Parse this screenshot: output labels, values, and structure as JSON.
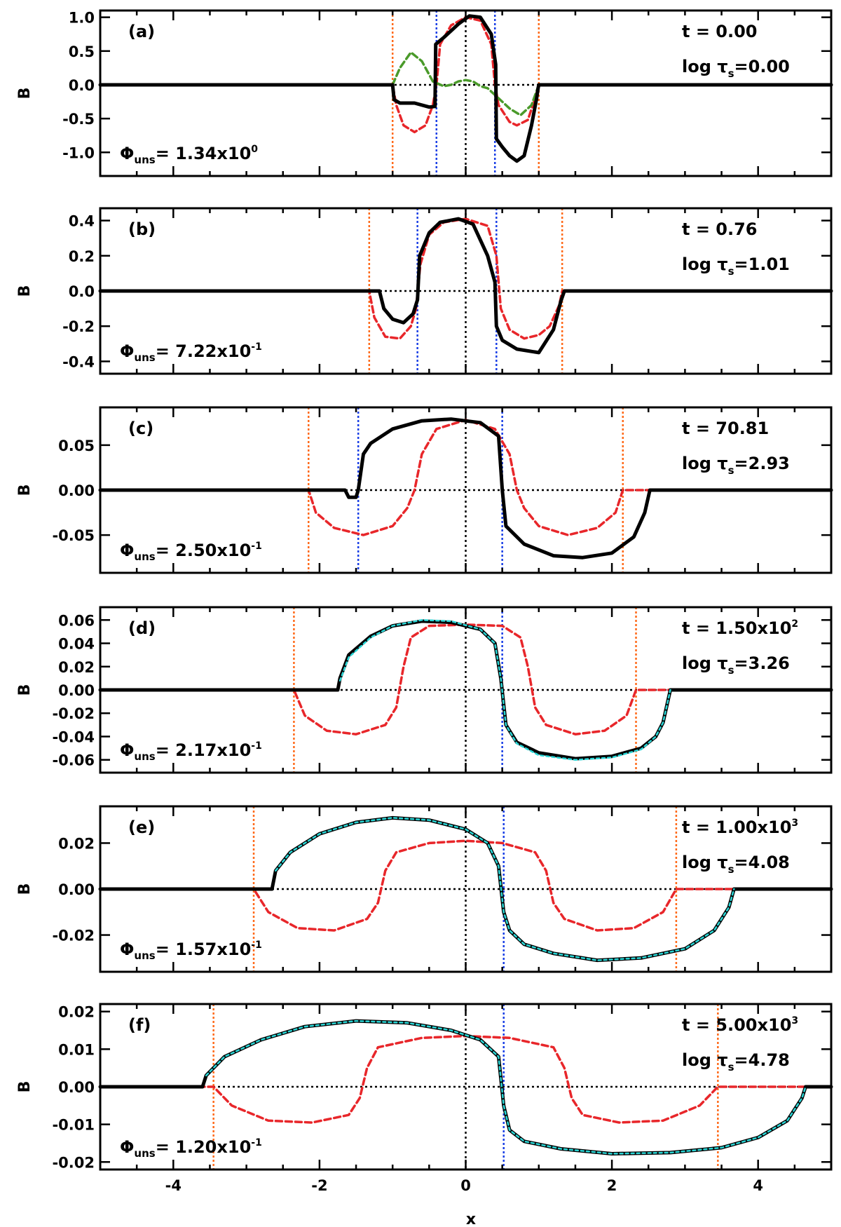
{
  "figure": {
    "xlabel": "x",
    "ylabel": "B",
    "xlim": [
      -5,
      5
    ],
    "xticks": [
      -4,
      -2,
      0,
      2,
      4
    ],
    "xtick_labels": [
      "-4",
      "-2",
      "0",
      "2",
      "4"
    ]
  },
  "colors": {
    "B": "#000000",
    "reference": "#e8262a",
    "initial_green": "#4a9a2a",
    "fit": "#2ad6d6",
    "outer_boundary": "#ff6a1a",
    "inner_boundary": "#1a3fe6",
    "zero_line": "#000000"
  },
  "chart_data": [
    {
      "type": "line",
      "panel_label": "(a)",
      "time_label": "t  =  0.00",
      "tau_label": "log τ",
      "tau_subscript": "s",
      "tau_value": "=0.00",
      "phi_symbol": "Φ",
      "phi_subscript": "uns",
      "phi_value": "=  1.34x10",
      "phi_exponent": "0",
      "ylim": [
        -1.35,
        1.1
      ],
      "yticks": [
        -1.0,
        -0.5,
        0.0,
        0.5,
        1.0
      ],
      "ytick_labels": [
        "-1.0",
        "-0.5",
        "0.0",
        "0.5",
        "1.0"
      ],
      "outer_lines": [
        -1.0,
        1.0
      ],
      "inner_lines": [
        -0.4,
        0.4
      ],
      "series": [
        {
          "style": "solid-black",
          "x": [
            -5,
            -1.0,
            -0.98,
            -0.9,
            -0.7,
            -0.5,
            -0.42,
            -0.41,
            -0.3,
            -0.1,
            0.05,
            0.2,
            0.35,
            0.41,
            0.42,
            0.5,
            0.6,
            0.7,
            0.8,
            0.9,
            0.97,
            0.99,
            1.0,
            5
          ],
          "y": [
            0,
            0,
            -0.22,
            -0.27,
            -0.27,
            -0.33,
            -0.32,
            0.6,
            0.7,
            0.9,
            1.02,
            1.0,
            0.75,
            0.3,
            -0.8,
            -0.92,
            -1.05,
            -1.13,
            -1.05,
            -0.6,
            -0.2,
            -0.05,
            0,
            0
          ]
        },
        {
          "style": "dash-red",
          "x": [
            -5,
            -1.0,
            -0.95,
            -0.85,
            -0.7,
            -0.55,
            -0.45,
            -0.4,
            -0.35,
            -0.2,
            0,
            0.2,
            0.35,
            0.4,
            0.45,
            0.6,
            0.7,
            0.85,
            0.95,
            1.0,
            5
          ],
          "y": [
            0,
            0,
            -0.3,
            -0.6,
            -0.7,
            -0.6,
            -0.3,
            0,
            0.6,
            0.88,
            1.0,
            0.95,
            0.6,
            0,
            -0.3,
            -0.55,
            -0.6,
            -0.52,
            -0.2,
            0,
            0
          ]
        },
        {
          "style": "dash-green",
          "x": [
            -1.0,
            -0.9,
            -0.75,
            -0.6,
            -0.45,
            -0.3,
            -0.2,
            -0.1,
            0,
            0.1,
            0.2,
            0.3,
            0.45,
            0.6,
            0.75,
            0.9,
            1.0
          ],
          "y": [
            0,
            0.25,
            0.48,
            0.35,
            0.05,
            -0.02,
            0,
            0.05,
            0.07,
            0.05,
            -0.02,
            -0.05,
            -0.2,
            -0.35,
            -0.45,
            -0.3,
            0
          ]
        }
      ]
    },
    {
      "type": "line",
      "panel_label": "(b)",
      "time_label": "t  =  0.76",
      "tau_label": "log τ",
      "tau_subscript": "s",
      "tau_value": "=1.01",
      "phi_symbol": "Φ",
      "phi_subscript": "uns",
      "phi_value": "=  7.22x10",
      "phi_exponent": "-1",
      "ylim": [
        -0.47,
        0.47
      ],
      "yticks": [
        -0.4,
        -0.2,
        0.0,
        0.2,
        0.4
      ],
      "ytick_labels": [
        "-0.4",
        "-0.2",
        "0.0",
        "0.2",
        "0.4"
      ],
      "outer_lines": [
        -1.32,
        1.32
      ],
      "inner_lines": [
        -0.66,
        0.42
      ],
      "series": [
        {
          "style": "solid-black",
          "x": [
            -5,
            -1.18,
            -1.12,
            -1.0,
            -0.85,
            -0.72,
            -0.66,
            -0.63,
            -0.5,
            -0.35,
            -0.1,
            0.1,
            0.3,
            0.4,
            0.42,
            0.5,
            0.7,
            1.0,
            1.2,
            1.3,
            1.35,
            5
          ],
          "y": [
            0,
            0,
            -0.1,
            -0.16,
            -0.18,
            -0.13,
            -0.05,
            0.2,
            0.33,
            0.39,
            0.41,
            0.38,
            0.2,
            0.05,
            -0.2,
            -0.28,
            -0.33,
            -0.35,
            -0.22,
            -0.06,
            0,
            0
          ]
        },
        {
          "style": "dash-red",
          "x": [
            -5,
            -1.32,
            -1.25,
            -1.1,
            -0.9,
            -0.75,
            -0.68,
            -0.62,
            -0.5,
            -0.3,
            0,
            0.3,
            0.42,
            0.48,
            0.6,
            0.8,
            1.0,
            1.15,
            1.28,
            1.32,
            5
          ],
          "y": [
            0,
            0,
            -0.15,
            -0.26,
            -0.27,
            -0.2,
            -0.1,
            0.15,
            0.32,
            0.39,
            0.41,
            0.37,
            0.2,
            -0.1,
            -0.22,
            -0.27,
            -0.25,
            -0.2,
            -0.08,
            0,
            0
          ]
        }
      ]
    },
    {
      "type": "line",
      "panel_label": "(c)",
      "time_label": "t  =  70.81",
      "tau_label": "log τ",
      "tau_subscript": "s",
      "tau_value": "=2.93",
      "phi_symbol": "Φ",
      "phi_subscript": "uns",
      "phi_value": "=  2.50x10",
      "phi_exponent": "-1",
      "ylim": [
        -0.092,
        0.092
      ],
      "yticks": [
        -0.05,
        0.0,
        0.05
      ],
      "ytick_labels": [
        "-0.05",
        "0.00",
        "0.05"
      ],
      "outer_lines": [
        -2.15,
        2.15
      ],
      "inner_lines": [
        -1.47,
        0.5
      ],
      "series": [
        {
          "style": "solid-black",
          "x": [
            -5,
            -1.65,
            -1.6,
            -1.5,
            -1.47,
            -1.4,
            -1.3,
            -1.0,
            -0.6,
            -0.2,
            0.2,
            0.45,
            0.5,
            0.55,
            0.8,
            1.2,
            1.6,
            2.0,
            2.3,
            2.45,
            2.52,
            5
          ],
          "y": [
            0,
            0,
            -0.008,
            -0.008,
            0,
            0.04,
            0.052,
            0.068,
            0.077,
            0.079,
            0.075,
            0.06,
            0,
            -0.04,
            -0.06,
            -0.073,
            -0.075,
            -0.07,
            -0.052,
            -0.025,
            0,
            0
          ]
        },
        {
          "style": "dash-red",
          "x": [
            -5,
            -2.15,
            -2.05,
            -1.8,
            -1.4,
            -1.0,
            -0.8,
            -0.7,
            -0.6,
            -0.4,
            0,
            0.4,
            0.6,
            0.7,
            0.8,
            1.0,
            1.4,
            1.8,
            2.05,
            2.15,
            5
          ],
          "y": [
            0,
            0,
            -0.025,
            -0.042,
            -0.05,
            -0.04,
            -0.02,
            0,
            0.04,
            0.068,
            0.078,
            0.068,
            0.04,
            0,
            -0.02,
            -0.04,
            -0.05,
            -0.042,
            -0.025,
            0,
            0
          ]
        }
      ]
    },
    {
      "type": "line",
      "panel_label": "(d)",
      "time_label": "t  =  1.50x10",
      "time_exponent": "2",
      "tau_label": "log τ",
      "tau_subscript": "s",
      "tau_value": "=3.26",
      "phi_symbol": "Φ",
      "phi_subscript": "uns",
      "phi_value": "=  2.17x10",
      "phi_exponent": "-1",
      "ylim": [
        -0.071,
        0.071
      ],
      "yticks": [
        -0.06,
        -0.04,
        -0.02,
        0.0,
        0.02,
        0.04,
        0.06
      ],
      "ytick_labels": [
        "-0.06",
        "-0.04",
        "-0.02",
        "0.00",
        "0.02",
        "0.04",
        "0.06"
      ],
      "outer_lines": [
        -2.35,
        2.33
      ],
      "inner_lines": [
        0.5
      ],
      "series": [
        {
          "style": "solid-black",
          "x": [
            -5,
            -1.75,
            -1.72,
            -1.6,
            -1.3,
            -1.0,
            -0.6,
            -0.2,
            0.2,
            0.4,
            0.48,
            0.55,
            0.7,
            1.0,
            1.5,
            2.0,
            2.4,
            2.6,
            2.7,
            2.8,
            5
          ],
          "y": [
            0,
            0,
            0.01,
            0.03,
            0.046,
            0.055,
            0.059,
            0.058,
            0.052,
            0.04,
            0.01,
            -0.03,
            -0.045,
            -0.054,
            -0.059,
            -0.057,
            -0.05,
            -0.04,
            -0.028,
            0,
            0
          ]
        },
        {
          "style": "dash-cyan",
          "x": [
            -1.72,
            -1.6,
            -1.3,
            -1.0,
            -0.6,
            -0.2,
            0.2,
            0.4,
            0.48,
            0.55,
            0.7,
            1.0,
            1.5,
            2.0,
            2.4,
            2.6,
            2.7,
            2.8
          ],
          "y": [
            0.008,
            0.028,
            0.045,
            0.055,
            0.06,
            0.059,
            0.052,
            0.04,
            0.01,
            -0.03,
            -0.046,
            -0.056,
            -0.06,
            -0.058,
            -0.051,
            -0.04,
            -0.028,
            0
          ]
        },
        {
          "style": "dash-red",
          "x": [
            -5,
            -2.35,
            -2.2,
            -1.9,
            -1.5,
            -1.1,
            -0.95,
            -0.85,
            -0.75,
            -0.5,
            0,
            0.5,
            0.75,
            0.85,
            0.95,
            1.1,
            1.5,
            1.9,
            2.2,
            2.33,
            5
          ],
          "y": [
            0,
            0,
            -0.022,
            -0.035,
            -0.038,
            -0.03,
            -0.015,
            0.02,
            0.045,
            0.055,
            0.056,
            0.055,
            0.045,
            0.02,
            -0.015,
            -0.03,
            -0.038,
            -0.035,
            -0.022,
            0,
            0
          ]
        }
      ]
    },
    {
      "type": "line",
      "panel_label": "(e)",
      "time_label": "t  =  1.00x10",
      "time_exponent": "3",
      "tau_label": "log τ",
      "tau_subscript": "s",
      "tau_value": "=4.08",
      "phi_symbol": "Φ",
      "phi_subscript": "uns",
      "phi_value": "=  1.57x10",
      "phi_exponent": "-1",
      "ylim": [
        -0.036,
        0.036
      ],
      "yticks": [
        -0.02,
        0.0,
        0.02
      ],
      "ytick_labels": [
        "-0.02",
        "0.00",
        "0.02"
      ],
      "outer_lines": [
        -2.9,
        2.88
      ],
      "inner_lines": [
        0.52
      ],
      "series": [
        {
          "style": "solid-black",
          "x": [
            -5,
            -2.65,
            -2.6,
            -2.4,
            -2.0,
            -1.5,
            -1.0,
            -0.5,
            0,
            0.3,
            0.45,
            0.52,
            0.6,
            0.8,
            1.2,
            1.8,
            2.4,
            3.0,
            3.4,
            3.6,
            3.67,
            5
          ],
          "y": [
            0,
            0,
            0.008,
            0.016,
            0.024,
            0.029,
            0.031,
            0.03,
            0.026,
            0.02,
            0.01,
            -0.01,
            -0.018,
            -0.024,
            -0.028,
            -0.031,
            -0.03,
            -0.026,
            -0.018,
            -0.008,
            0,
            0
          ]
        },
        {
          "style": "dash-cyan",
          "x": [
            -2.6,
            -2.4,
            -2.0,
            -1.5,
            -1.0,
            -0.5,
            0,
            0.3,
            0.45,
            0.52,
            0.6,
            0.8,
            1.2,
            1.8,
            2.4,
            3.0,
            3.4,
            3.6,
            3.67
          ],
          "y": [
            0.008,
            0.016,
            0.024,
            0.029,
            0.031,
            0.03,
            0.026,
            0.02,
            0.01,
            -0.01,
            -0.018,
            -0.024,
            -0.028,
            -0.031,
            -0.03,
            -0.026,
            -0.018,
            -0.008,
            0
          ]
        },
        {
          "style": "dash-red",
          "x": [
            -5,
            -2.9,
            -2.7,
            -2.3,
            -1.8,
            -1.35,
            -1.2,
            -1.1,
            -0.95,
            -0.5,
            0,
            0.5,
            0.95,
            1.1,
            1.2,
            1.35,
            1.8,
            2.3,
            2.7,
            2.88,
            5
          ],
          "y": [
            0,
            0,
            -0.01,
            -0.017,
            -0.018,
            -0.013,
            -0.006,
            0.008,
            0.016,
            0.02,
            0.021,
            0.02,
            0.016,
            0.008,
            -0.006,
            -0.013,
            -0.018,
            -0.017,
            -0.01,
            0,
            0
          ]
        }
      ]
    },
    {
      "type": "line",
      "panel_label": "(f)",
      "time_label": "t  =  5.00x10",
      "time_exponent": "3",
      "tau_label": "log τ",
      "tau_subscript": "s",
      "tau_value": "=4.78",
      "phi_symbol": "Φ",
      "phi_subscript": "uns",
      "phi_value": "=  1.20x10",
      "phi_exponent": "-1",
      "ylim": [
        -0.022,
        0.022
      ],
      "yticks": [
        -0.02,
        -0.01,
        0.0,
        0.01,
        0.02
      ],
      "ytick_labels": [
        "-0.02",
        "-0.01",
        "0.00",
        "0.01",
        "0.02"
      ],
      "outer_lines": [
        -3.45,
        3.45
      ],
      "inner_lines": [
        0.52
      ],
      "series": [
        {
          "style": "solid-black",
          "x": [
            -5,
            -3.6,
            -3.55,
            -3.3,
            -2.8,
            -2.2,
            -1.5,
            -0.8,
            -0.2,
            0.2,
            0.45,
            0.52,
            0.6,
            0.8,
            1.3,
            2.0,
            2.8,
            3.5,
            4.0,
            4.4,
            4.6,
            4.65,
            5
          ],
          "y": [
            0,
            0,
            0.003,
            0.008,
            0.0125,
            0.016,
            0.0175,
            0.017,
            0.015,
            0.0125,
            0.008,
            -0.005,
            -0.0115,
            -0.0145,
            -0.0165,
            -0.0178,
            -0.0175,
            -0.0162,
            -0.0135,
            -0.009,
            -0.003,
            0,
            0
          ]
        },
        {
          "style": "dash-cyan",
          "x": [
            -3.55,
            -3.3,
            -2.8,
            -2.2,
            -1.5,
            -0.8,
            -0.2,
            0.2,
            0.45,
            0.52,
            0.6,
            0.8,
            1.3,
            2.0,
            2.8,
            3.5,
            4.0,
            4.4,
            4.6,
            4.65
          ],
          "y": [
            0.003,
            0.008,
            0.0125,
            0.016,
            0.0175,
            0.017,
            0.015,
            0.0125,
            0.008,
            -0.005,
            -0.0115,
            -0.0145,
            -0.0165,
            -0.0178,
            -0.0175,
            -0.0162,
            -0.0135,
            -0.009,
            -0.003,
            0
          ]
        },
        {
          "style": "dash-red",
          "x": [
            -5,
            -3.45,
            -3.2,
            -2.7,
            -2.1,
            -1.6,
            -1.45,
            -1.35,
            -1.2,
            -0.6,
            0,
            0.6,
            1.2,
            1.35,
            1.45,
            1.6,
            2.1,
            2.7,
            3.2,
            3.45,
            5
          ],
          "y": [
            0,
            0,
            -0.005,
            -0.009,
            -0.0095,
            -0.0075,
            -0.003,
            0.005,
            0.0105,
            0.013,
            0.0135,
            0.013,
            0.0105,
            0.005,
            -0.003,
            -0.0075,
            -0.0095,
            -0.009,
            -0.005,
            0,
            0
          ]
        }
      ]
    }
  ]
}
